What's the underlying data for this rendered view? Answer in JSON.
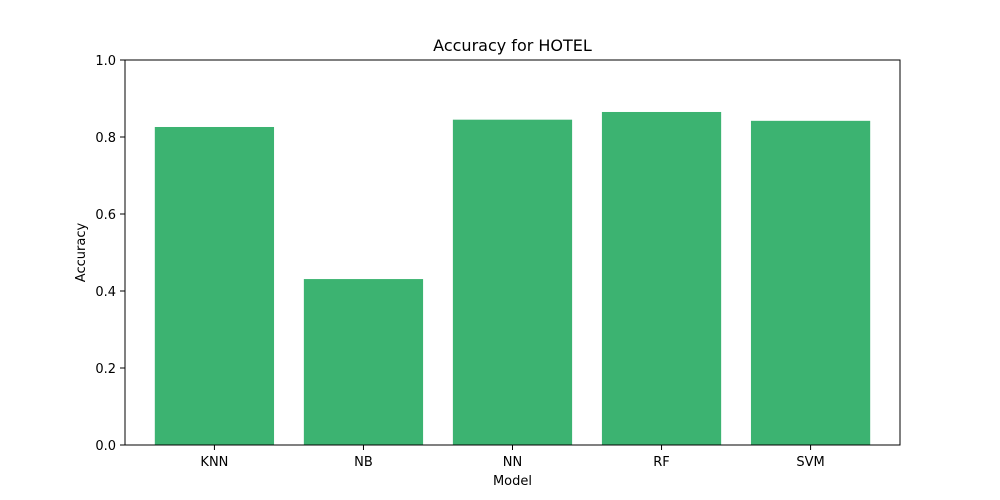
{
  "colors": {
    "bar": "#3cb371",
    "axis": "#000000",
    "background": "#ffffff"
  },
  "chart_data": {
    "type": "bar",
    "title": "Accuracy for HOTEL",
    "xlabel": "Model",
    "ylabel": "Accuracy",
    "categories": [
      "KNN",
      "NB",
      "NN",
      "RF",
      "SVM"
    ],
    "values": [
      0.826,
      0.431,
      0.845,
      0.865,
      0.842
    ],
    "ylim": [
      0,
      1.0
    ],
    "yticks": [
      0.0,
      0.2,
      0.4,
      0.6,
      0.8,
      1.0
    ],
    "ytick_labels": [
      "0.0",
      "0.2",
      "0.4",
      "0.6",
      "0.8",
      "1.0"
    ],
    "grid": false,
    "legend": "none"
  }
}
